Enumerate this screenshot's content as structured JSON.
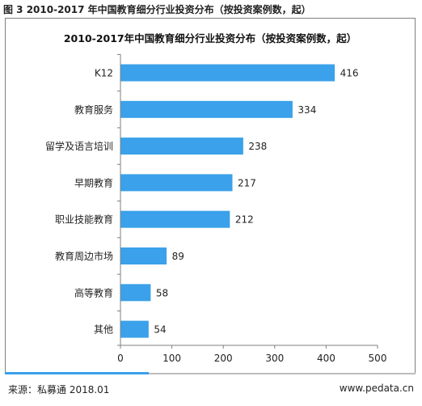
{
  "caption": "图 3 2010-2017 年中国教育细分行业投资分布（按投资案例数，起）",
  "footer": {
    "source": "来源：私募通 2018.01",
    "website": "www.pedata.cn"
  },
  "colors": {
    "bar": "#3aa1ea",
    "accent": "#39a0e8"
  },
  "chart_data": {
    "type": "bar",
    "orientation": "horizontal",
    "title": "2010-2017年中国教育细分行业投资分布（按投资案例数，起）",
    "xlabel": "",
    "ylabel": "",
    "categories": [
      "K12",
      "教育服务",
      "留学及语言培训",
      "早期教育",
      "职业技能教育",
      "教育周边市场",
      "高等教育",
      "其他"
    ],
    "values": [
      416,
      334,
      238,
      217,
      212,
      89,
      58,
      54
    ],
    "xlim": [
      0,
      500
    ],
    "xticks": [
      0,
      100,
      200,
      300,
      400,
      500
    ],
    "grid": false,
    "legend": "none"
  }
}
